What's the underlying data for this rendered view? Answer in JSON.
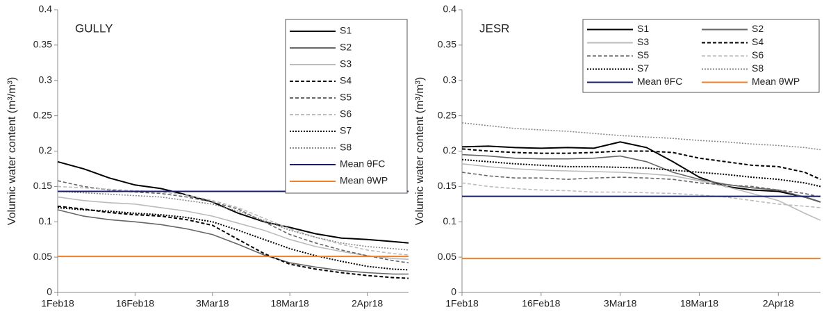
{
  "chart_data": [
    {
      "type": "line",
      "annotation": "GULLY",
      "ylabel": "Volumic water content (m³/m³)",
      "x": [
        "2018-02-01",
        "2018-02-06",
        "2018-02-11",
        "2018-02-16",
        "2018-02-21",
        "2018-02-26",
        "2018-03-03",
        "2018-03-08",
        "2018-03-13",
        "2018-03-18",
        "2018-03-23",
        "2018-03-28",
        "2018-04-02",
        "2018-04-07",
        "2018-04-10"
      ],
      "xlim": [
        "2018-02-01",
        "2018-04-10"
      ],
      "xticks": [
        {
          "value": "2018-02-01",
          "label": "1Feb18"
        },
        {
          "value": "2018-02-16",
          "label": "16Feb18"
        },
        {
          "value": "2018-03-03",
          "label": "3Mar18"
        },
        {
          "value": "2018-03-18",
          "label": "18Mar18"
        },
        {
          "value": "2018-04-02",
          "label": "2Apr18"
        }
      ],
      "ylim": [
        0,
        0.4
      ],
      "yticks": [
        0,
        0.05,
        0.1,
        0.15,
        0.2,
        0.25,
        0.3,
        0.35,
        0.4
      ],
      "legend": "upper right",
      "legend_columns": 1,
      "series": [
        {
          "name": "S1",
          "color": "#000000",
          "dash": "solid",
          "values": [
            0.185,
            0.175,
            0.162,
            0.152,
            0.147,
            0.138,
            0.128,
            0.112,
            0.1,
            0.092,
            0.083,
            0.077,
            0.075,
            0.072,
            0.07
          ]
        },
        {
          "name": "S2",
          "color": "#666666",
          "dash": "solid",
          "values": [
            0.117,
            0.108,
            0.103,
            0.1,
            0.096,
            0.09,
            0.082,
            0.068,
            0.053,
            0.042,
            0.036,
            0.031,
            0.028,
            0.026,
            0.026
          ]
        },
        {
          "name": "S3",
          "color": "#bbbbbb",
          "dash": "solid",
          "values": [
            0.135,
            0.13,
            0.127,
            0.125,
            0.12,
            0.115,
            0.108,
            0.098,
            0.088,
            0.075,
            0.065,
            0.058,
            0.052,
            0.048,
            0.047
          ]
        },
        {
          "name": "S4",
          "color": "#000000",
          "dash": "dashed",
          "values": [
            0.122,
            0.118,
            0.113,
            0.11,
            0.108,
            0.103,
            0.095,
            0.075,
            0.055,
            0.04,
            0.033,
            0.028,
            0.024,
            0.021,
            0.02
          ]
        },
        {
          "name": "S5",
          "color": "#666666",
          "dash": "dashed",
          "values": [
            0.158,
            0.15,
            0.145,
            0.142,
            0.14,
            0.135,
            0.128,
            0.118,
            0.1,
            0.082,
            0.07,
            0.06,
            0.052,
            0.045,
            0.042
          ]
        },
        {
          "name": "S6",
          "color": "#bbbbbb",
          "dash": "dashed",
          "values": [
            0.15,
            0.148,
            0.146,
            0.144,
            0.142,
            0.138,
            0.13,
            0.12,
            0.105,
            0.09,
            0.078,
            0.068,
            0.06,
            0.055,
            0.053
          ]
        },
        {
          "name": "S7",
          "color": "#000000",
          "dash": "dotted",
          "values": [
            0.12,
            0.117,
            0.115,
            0.112,
            0.11,
            0.106,
            0.1,
            0.088,
            0.075,
            0.062,
            0.052,
            0.044,
            0.037,
            0.033,
            0.032
          ]
        },
        {
          "name": "S8",
          "color": "#888888",
          "dash": "dotted",
          "values": [
            0.143,
            0.141,
            0.139,
            0.137,
            0.135,
            0.13,
            0.125,
            0.115,
            0.102,
            0.088,
            0.078,
            0.07,
            0.065,
            0.062,
            0.06
          ]
        }
      ],
      "hlines": [
        {
          "name": "Mean θFC",
          "color": "#1a1f6b",
          "value": 0.143
        },
        {
          "name": "Mean θWP",
          "color": "#f07f2a",
          "value": 0.051
        }
      ]
    },
    {
      "type": "line",
      "annotation": "JESR",
      "ylabel": "Volumic water content (m³/m³)",
      "x": [
        "2018-02-01",
        "2018-02-06",
        "2018-02-11",
        "2018-02-16",
        "2018-02-21",
        "2018-02-26",
        "2018-03-03",
        "2018-03-08",
        "2018-03-13",
        "2018-03-18",
        "2018-03-23",
        "2018-03-28",
        "2018-04-02",
        "2018-04-07",
        "2018-04-10"
      ],
      "xlim": [
        "2018-02-01",
        "2018-04-10"
      ],
      "xticks": [
        {
          "value": "2018-02-01",
          "label": "1Feb18"
        },
        {
          "value": "2018-02-16",
          "label": "16Feb18"
        },
        {
          "value": "2018-03-03",
          "label": "3Mar18"
        },
        {
          "value": "2018-03-18",
          "label": "18Mar18"
        },
        {
          "value": "2018-04-02",
          "label": "2Apr18"
        }
      ],
      "ylim": [
        0,
        0.4
      ],
      "yticks": [
        0,
        0.05,
        0.1,
        0.15,
        0.2,
        0.25,
        0.3,
        0.35,
        0.4
      ],
      "legend": "upper right",
      "legend_columns": 2,
      "series": [
        {
          "name": "S1",
          "color": "#000000",
          "dash": "solid",
          "values": [
            0.206,
            0.207,
            0.205,
            0.204,
            0.205,
            0.204,
            0.213,
            0.205,
            0.185,
            0.163,
            0.15,
            0.145,
            0.143,
            0.135,
            0.128
          ]
        },
        {
          "name": "S2",
          "color": "#666666",
          "dash": "solid",
          "values": [
            0.195,
            0.193,
            0.19,
            0.189,
            0.189,
            0.19,
            0.193,
            0.185,
            0.17,
            0.16,
            0.153,
            0.148,
            0.145,
            0.135,
            0.128
          ]
        },
        {
          "name": "S3",
          "color": "#bbbbbb",
          "dash": "solid",
          "values": [
            0.182,
            0.178,
            0.175,
            0.173,
            0.172,
            0.171,
            0.17,
            0.168,
            0.165,
            0.158,
            0.15,
            0.14,
            0.13,
            0.112,
            0.102
          ]
        },
        {
          "name": "S4",
          "color": "#000000",
          "dash": "dashed",
          "values": [
            0.203,
            0.2,
            0.198,
            0.197,
            0.197,
            0.198,
            0.2,
            0.2,
            0.198,
            0.19,
            0.185,
            0.18,
            0.178,
            0.17,
            0.16
          ]
        },
        {
          "name": "S5",
          "color": "#666666",
          "dash": "dashed",
          "values": [
            0.17,
            0.165,
            0.162,
            0.162,
            0.16,
            0.162,
            0.163,
            0.162,
            0.16,
            0.155,
            0.152,
            0.15,
            0.145,
            0.14,
            0.135
          ]
        },
        {
          "name": "S6",
          "color": "#bbbbbb",
          "dash": "dashed",
          "values": [
            0.155,
            0.15,
            0.147,
            0.145,
            0.144,
            0.142,
            0.142,
            0.141,
            0.14,
            0.138,
            0.135,
            0.13,
            0.125,
            0.122,
            0.12
          ]
        },
        {
          "name": "S7",
          "color": "#000000",
          "dash": "dotted",
          "values": [
            0.188,
            0.185,
            0.182,
            0.18,
            0.178,
            0.178,
            0.177,
            0.176,
            0.173,
            0.17,
            0.167,
            0.163,
            0.16,
            0.155,
            0.15
          ]
        },
        {
          "name": "S8",
          "color": "#888888",
          "dash": "dotted",
          "values": [
            0.24,
            0.236,
            0.232,
            0.23,
            0.228,
            0.225,
            0.222,
            0.22,
            0.218,
            0.215,
            0.213,
            0.21,
            0.208,
            0.205,
            0.202
          ]
        }
      ],
      "hlines": [
        {
          "name": "Mean θFC",
          "color": "#1a1f6b",
          "value": 0.136
        },
        {
          "name": "Mean θWP",
          "color": "#f07f2a",
          "value": 0.048
        }
      ]
    }
  ]
}
